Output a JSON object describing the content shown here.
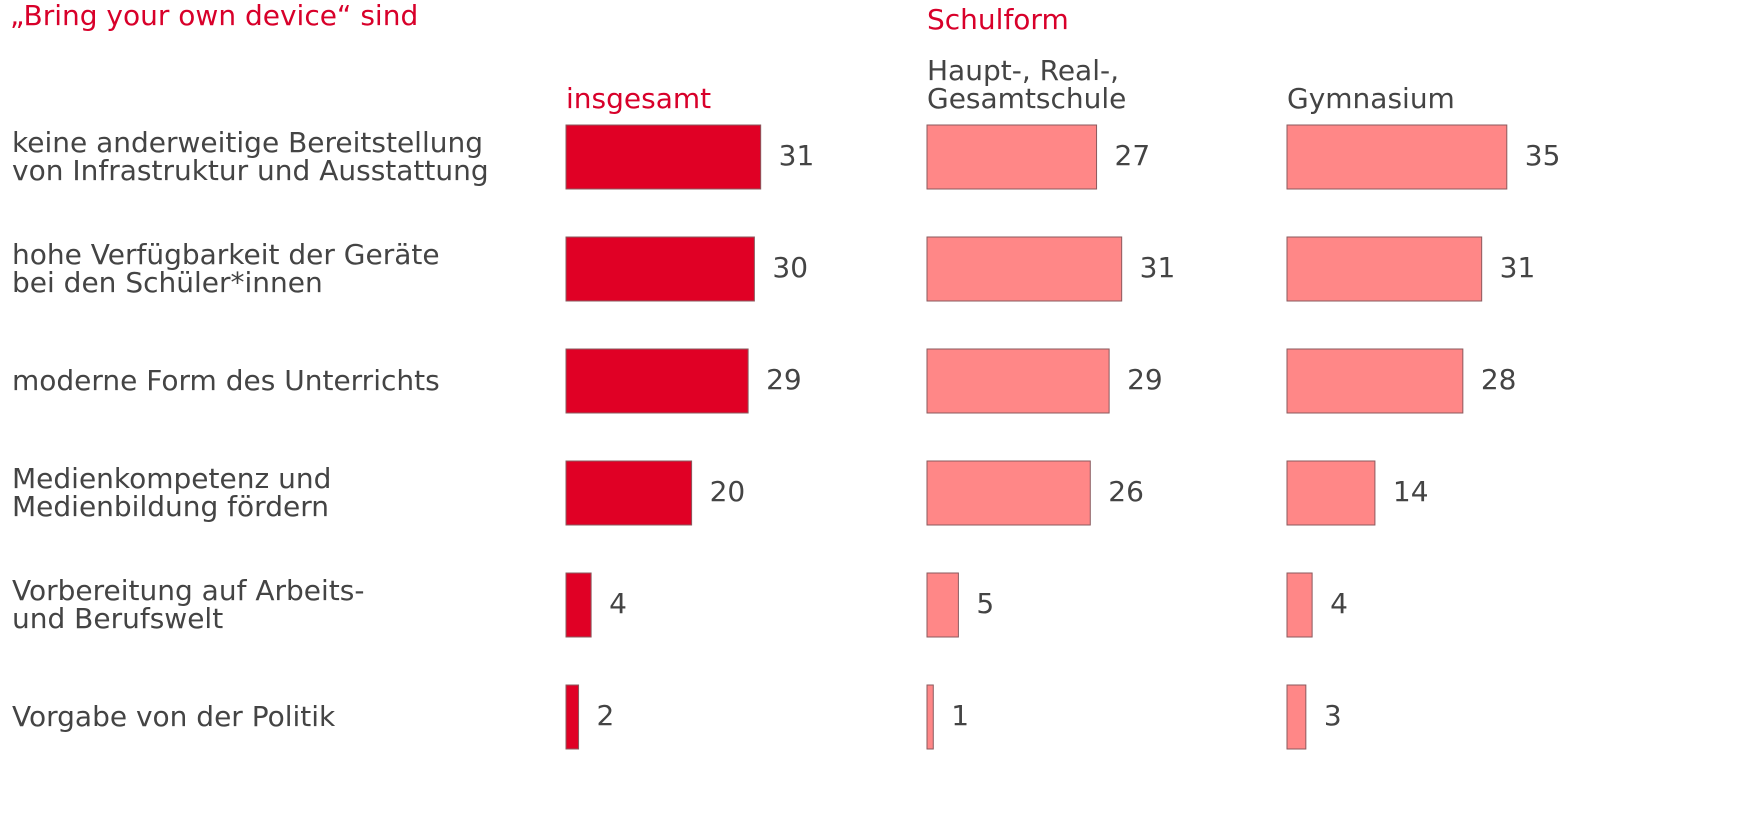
{
  "chart_data": {
    "type": "bar",
    "orientation": "horizontal",
    "title": "„Bring your own device“ sind",
    "group_title": "Schulform",
    "categories": [
      "keine anderweitige Bereitstellung\nvon Infrastruktur und Ausstattung",
      "hohe Verfügbarkeit der Geräte\nbei den Schüler*innen",
      "moderne Form des Unterrichts",
      "Medienkompetenz und\nMedienbildung fördern",
      "Vorbereitung auf Arbeits-\nund Berufswelt",
      "Vorgabe von der Politik"
    ],
    "series": [
      {
        "name": "insgesamt",
        "color": "#e00025",
        "values": [
          31,
          30,
          29,
          20,
          4,
          2
        ]
      },
      {
        "name": "Haupt-, Real-,\nGesamtschule",
        "color": "#ff8787",
        "values": [
          27,
          31,
          29,
          26,
          5,
          1
        ]
      },
      {
        "name": "Gymnasium",
        "color": "#ff8787",
        "values": [
          35,
          31,
          28,
          14,
          4,
          3
        ]
      }
    ]
  }
}
